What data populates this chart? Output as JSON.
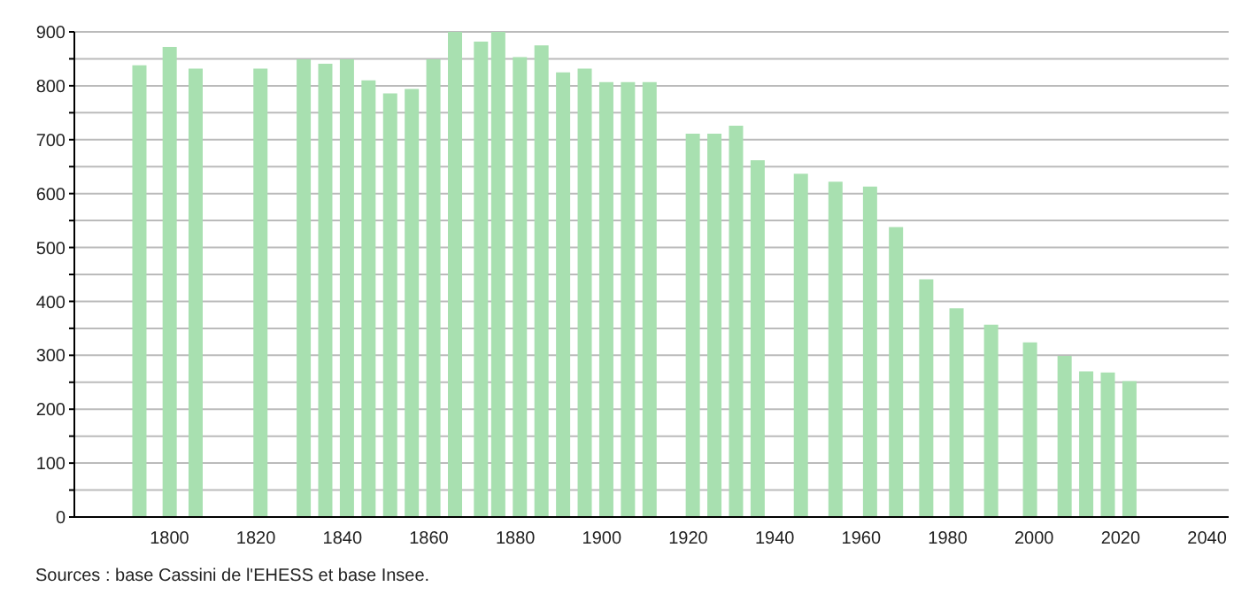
{
  "chart_data": {
    "type": "bar",
    "x": [
      1793,
      1800,
      1806,
      1821,
      1831,
      1836,
      1841,
      1846,
      1851,
      1856,
      1861,
      1866,
      1872,
      1876,
      1881,
      1886,
      1891,
      1896,
      1901,
      1906,
      1911,
      1921,
      1926,
      1931,
      1936,
      1946,
      1954,
      1962,
      1968,
      1975,
      1982,
      1990,
      1999,
      2007,
      2012,
      2017,
      2022
    ],
    "values": [
      838,
      872,
      832,
      832,
      849,
      841,
      849,
      810,
      786,
      794,
      849,
      900,
      882,
      900,
      853,
      875,
      825,
      832,
      807,
      807,
      807,
      711,
      711,
      726,
      662,
      637,
      622,
      613,
      538,
      441,
      387,
      357,
      324,
      299,
      270,
      268,
      252
    ],
    "color": "#a8e0b0",
    "xlim": [
      1778,
      2045
    ],
    "xticks": [
      1800,
      1820,
      1840,
      1860,
      1880,
      1900,
      1920,
      1940,
      1960,
      1980,
      2000,
      2020,
      2040
    ],
    "ylim": [
      0,
      900
    ],
    "yticks": [
      0,
      {
        "value": 50,
        "label": null
      },
      100,
      {
        "value": 150,
        "label": null
      },
      200,
      {
        "value": 250,
        "label": null
      },
      300,
      {
        "value": 350,
        "label": null
      },
      400,
      {
        "value": 450,
        "label": null
      },
      500,
      {
        "value": 550,
        "label": null
      },
      600,
      {
        "value": 650,
        "label": null
      },
      700,
      {
        "value": 750,
        "label": null
      },
      800,
      {
        "value": 850,
        "label": null
      },
      900
    ],
    "grid": "y",
    "annotations": [
      "Sources : base Cassini de l'EHESS et base Insee."
    ]
  }
}
